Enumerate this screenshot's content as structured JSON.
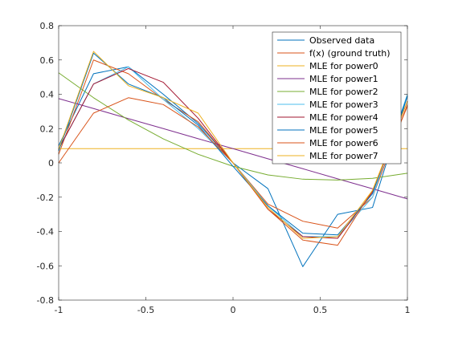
{
  "chart_data": {
    "type": "line",
    "title": "",
    "xlabel": "",
    "ylabel": "",
    "xlim": [
      -1,
      1
    ],
    "ylim": [
      -0.8,
      0.8
    ],
    "grid": false,
    "legend_position": "top-right",
    "x_ticks": [
      "-1",
      "-0.5",
      "0",
      "0.5",
      "1"
    ],
    "y_ticks": [
      "-0.8",
      "-0.6",
      "-0.4",
      "-0.2",
      "0",
      "0.2",
      "0.4",
      "0.6",
      "0.8"
    ],
    "x": [
      -1,
      -0.8,
      -0.6,
      -0.4,
      -0.2,
      0,
      0.2,
      0.4,
      0.6,
      0.8,
      1
    ],
    "series": [
      {
        "name": "Observed data",
        "color": "#0072BD",
        "values": [
          0.1,
          0.52,
          0.56,
          0.4,
          0.23,
          0.0,
          -0.15,
          -0.605,
          -0.3,
          -0.26,
          0.39
        ]
      },
      {
        "name": "f(x) (ground truth)",
        "color": "#D95319",
        "values": [
          0.05,
          0.6,
          0.52,
          0.37,
          0.24,
          0.0,
          -0.24,
          -0.34,
          -0.38,
          -0.2,
          0.34
        ]
      },
      {
        "name": "MLE for power0",
        "color": "#EDB120",
        "values": [
          0.083,
          0.083,
          0.083,
          0.083,
          0.083,
          0.083,
          0.083,
          0.083,
          0.083,
          0.083,
          0.083
        ]
      },
      {
        "name": "MLE for power1",
        "color": "#7E2F8E",
        "values": [
          0.375,
          0.317,
          0.258,
          0.2,
          0.141,
          0.083,
          0.024,
          -0.034,
          -0.093,
          -0.151,
          -0.21
        ]
      },
      {
        "name": "MLE for power2",
        "color": "#77AC30",
        "values": [
          0.525,
          0.38,
          0.25,
          0.14,
          0.05,
          -0.02,
          -0.07,
          -0.095,
          -0.1,
          -0.09,
          -0.06
        ]
      },
      {
        "name": "MLE for power3",
        "color": "#4DBEEE",
        "values": [
          0.08,
          0.46,
          0.56,
          0.37,
          0.2,
          0.0,
          -0.25,
          -0.43,
          -0.43,
          -0.2,
          0.4
        ]
      },
      {
        "name": "MLE for power4",
        "color": "#A2142F",
        "values": [
          0.08,
          0.46,
          0.55,
          0.47,
          0.26,
          0.0,
          -0.27,
          -0.43,
          -0.44,
          -0.17,
          0.36
        ]
      },
      {
        "name": "MLE for power5",
        "color": "#0072BD",
        "values": [
          0.07,
          0.64,
          0.46,
          0.38,
          0.22,
          -0.02,
          -0.25,
          -0.41,
          -0.42,
          -0.18,
          0.39
        ]
      },
      {
        "name": "MLE for power6",
        "color": "#D95319",
        "values": [
          0.0,
          0.29,
          0.38,
          0.34,
          0.21,
          0.0,
          -0.27,
          -0.45,
          -0.48,
          -0.16,
          0.33
        ]
      },
      {
        "name": "MLE for power7",
        "color": "#EDB120",
        "values": [
          0.08,
          0.65,
          0.45,
          0.38,
          0.29,
          0.0,
          -0.26,
          -0.44,
          -0.43,
          -0.16,
          0.36
        ]
      }
    ]
  }
}
